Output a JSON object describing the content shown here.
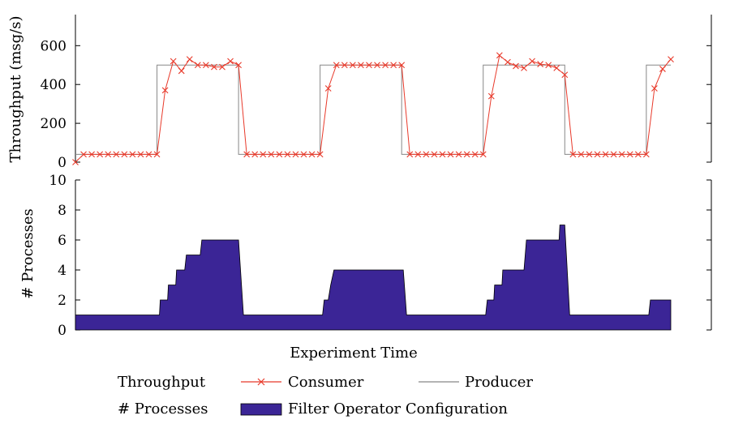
{
  "chart_data": [
    {
      "type": "line",
      "ylabel": "Throughput (msg/s)",
      "ylim": [
        0,
        760
      ],
      "yticks": [
        0,
        200,
        400,
        600
      ],
      "xlim": [
        0,
        73
      ],
      "series": [
        {
          "name": "Consumer",
          "color": "#e8392a",
          "marker": "x",
          "x": [
            0,
            1,
            2,
            3,
            4,
            5,
            6,
            7,
            8,
            9,
            10,
            11,
            12,
            13,
            14,
            15,
            16,
            17,
            18,
            19,
            20,
            21,
            22,
            23,
            24,
            25,
            26,
            27,
            28,
            29,
            30,
            31,
            32,
            33,
            34,
            35,
            36,
            37,
            38,
            39,
            40,
            41,
            42,
            43,
            44,
            45,
            46,
            47,
            48,
            49,
            50,
            51,
            52,
            53,
            54,
            55,
            56,
            57,
            58,
            59,
            60,
            61,
            62,
            63,
            64,
            65,
            66,
            67,
            68,
            69,
            70,
            71,
            72,
            73
          ],
          "y": [
            0,
            40,
            40,
            40,
            40,
            40,
            40,
            40,
            40,
            40,
            40,
            370,
            520,
            470,
            530,
            500,
            500,
            490,
            490,
            520,
            500,
            40,
            40,
            40,
            40,
            40,
            40,
            40,
            40,
            40,
            40,
            380,
            500,
            500,
            500,
            500,
            500,
            500,
            500,
            500,
            500,
            40,
            40,
            40,
            40,
            40,
            40,
            40,
            40,
            40,
            40,
            340,
            550,
            515,
            495,
            485,
            520,
            505,
            500,
            485,
            450,
            40,
            40,
            40,
            40,
            40,
            40,
            40,
            40,
            40,
            40,
            380,
            480,
            530
          ]
        },
        {
          "name": "Producer",
          "color": "#888888",
          "marker": "none",
          "x": [
            0,
            10,
            10,
            20,
            20,
            30,
            30,
            40,
            40,
            50,
            50,
            60,
            60,
            70,
            70,
            73
          ],
          "y": [
            40,
            40,
            500,
            500,
            40,
            40,
            500,
            500,
            40,
            40,
            500,
            500,
            40,
            40,
            500,
            500
          ]
        }
      ]
    },
    {
      "type": "area",
      "xlabel": "Experiment Time",
      "ylabel": "# Processes",
      "ylim": [
        0,
        10
      ],
      "yticks": [
        0,
        2,
        4,
        6,
        8,
        10
      ],
      "xlim": [
        0,
        73
      ],
      "series": [
        {
          "name": "Filter Operator Configuration",
          "color": "#3b2596",
          "x": [
            0,
            10.3,
            10.4,
            11.3,
            11.4,
            12.3,
            12.4,
            13.4,
            13.6,
            15.3,
            15.5,
            20.0,
            20.6,
            30.3,
            30.5,
            31.0,
            31.3,
            31.7,
            40.2,
            40.6,
            50.3,
            50.5,
            51.3,
            51.4,
            52.3,
            52.4,
            55.0,
            55.3,
            59.3,
            59.4,
            60.0,
            60.6,
            70.3,
            70.5,
            73.0
          ],
          "y": [
            1,
            1,
            2,
            2,
            3,
            3,
            4,
            4,
            5,
            5,
            6,
            6,
            1,
            1,
            2,
            2,
            3,
            4,
            4,
            1,
            1,
            2,
            2,
            3,
            3,
            4,
            4,
            6,
            6,
            7,
            7,
            1,
            1,
            2,
            2
          ]
        }
      ]
    }
  ],
  "legend": {
    "row1_label": "Throughput",
    "row2_label": "# Processes",
    "consumer": "Consumer",
    "producer": "Producer",
    "filter": "Filter Operator Configuration"
  },
  "colors": {
    "consumer": "#e8392a",
    "producer": "#888888",
    "filter": "#3b2596"
  }
}
